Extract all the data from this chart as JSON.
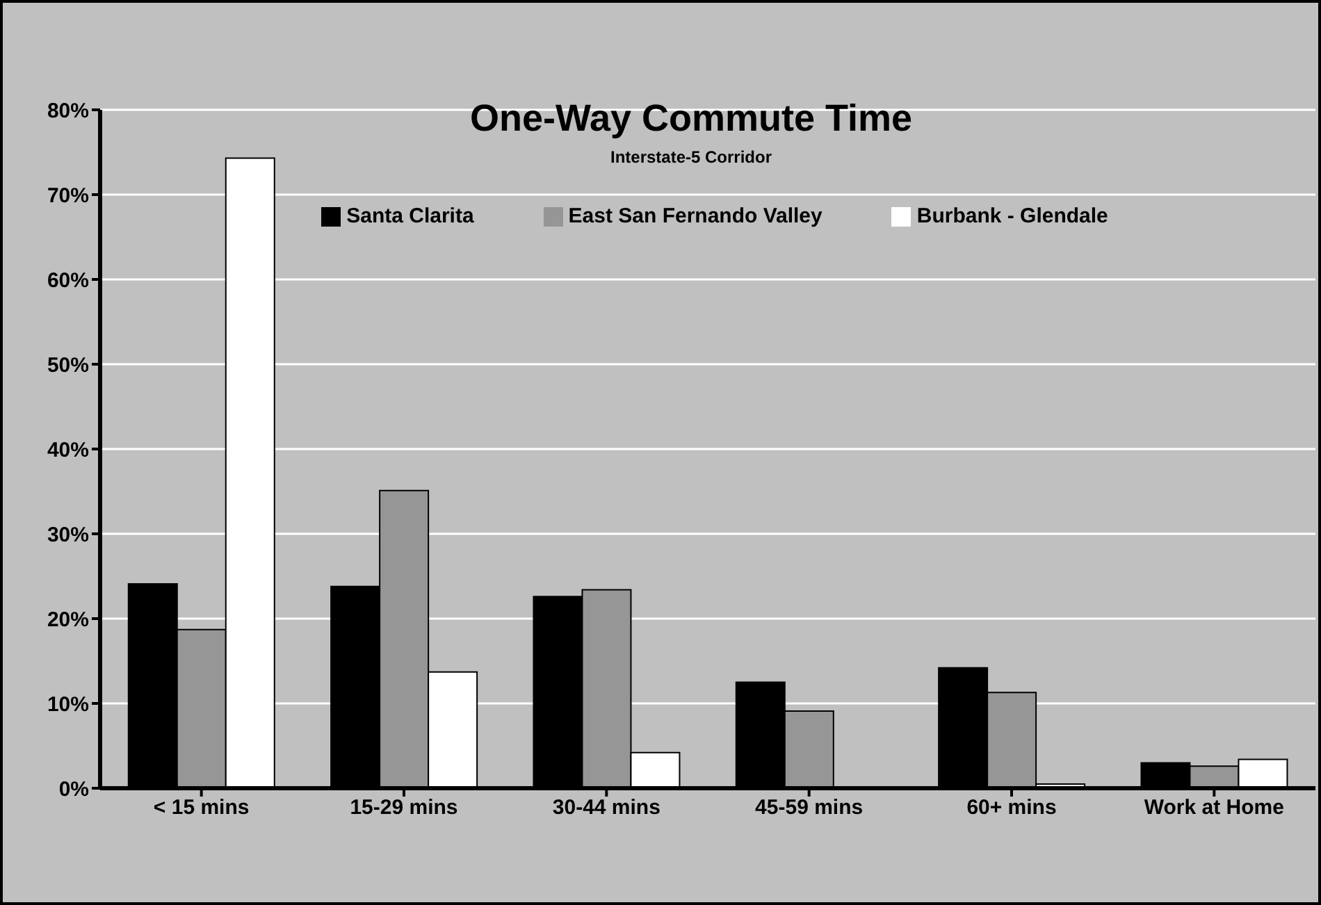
{
  "chart_data": {
    "type": "bar",
    "title": "One-Way Commute Time",
    "subtitle": "Interstate-5 Corridor",
    "categories": [
      "< 15 mins",
      "15-29 mins",
      "30-44 mins",
      "45-59 mins",
      "60+ mins",
      "Work at Home"
    ],
    "series": [
      {
        "name": "Santa Clarita",
        "color": "#000000",
        "values": [
          24.1,
          23.8,
          22.6,
          12.5,
          14.2,
          3.0
        ]
      },
      {
        "name": "East San Fernando Valley",
        "color": "#969696",
        "values": [
          18.7,
          35.1,
          23.4,
          9.1,
          11.3,
          2.6
        ]
      },
      {
        "name": "Burbank - Glendale",
        "color": "#ffffff",
        "values": [
          74.3,
          13.7,
          4.2,
          0,
          0.5,
          3.4
        ]
      }
    ],
    "ylim": [
      0,
      80
    ],
    "yticks": [
      {
        "value": 0,
        "label": "0%"
      },
      {
        "value": 10,
        "label": "10%"
      },
      {
        "value": 20,
        "label": "20%"
      },
      {
        "value": 30,
        "label": "30%"
      },
      {
        "value": 40,
        "label": "40%"
      },
      {
        "value": 50,
        "label": "50%"
      },
      {
        "value": 60,
        "label": "60%"
      },
      {
        "value": 70,
        "label": "70%"
      },
      {
        "value": 80,
        "label": "80%"
      }
    ],
    "grid": "y",
    "legend": "top"
  }
}
